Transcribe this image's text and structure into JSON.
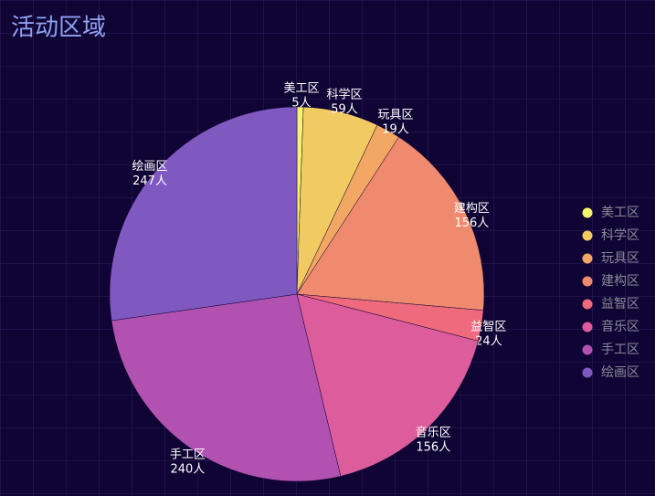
{
  "chart_data": {
    "type": "pie",
    "title": "活动区域",
    "categories": [
      "美工区",
      "科学区",
      "玩具区",
      "建构区",
      "益智区",
      "音乐区",
      "手工区",
      "绘画区"
    ],
    "values": [
      5,
      59,
      19,
      156,
      24,
      156,
      240,
      247
    ],
    "value_labels": [
      "5人",
      "59人",
      "19人",
      "156人",
      "24人",
      "156人",
      "240人",
      "247人"
    ],
    "colors": [
      "#f8f36c",
      "#f2ca62",
      "#f2a864",
      "#f08a6e",
      "#ee6a7c",
      "#dc5c9c",
      "#b152b0",
      "#7f58c0"
    ],
    "legend": "right"
  }
}
